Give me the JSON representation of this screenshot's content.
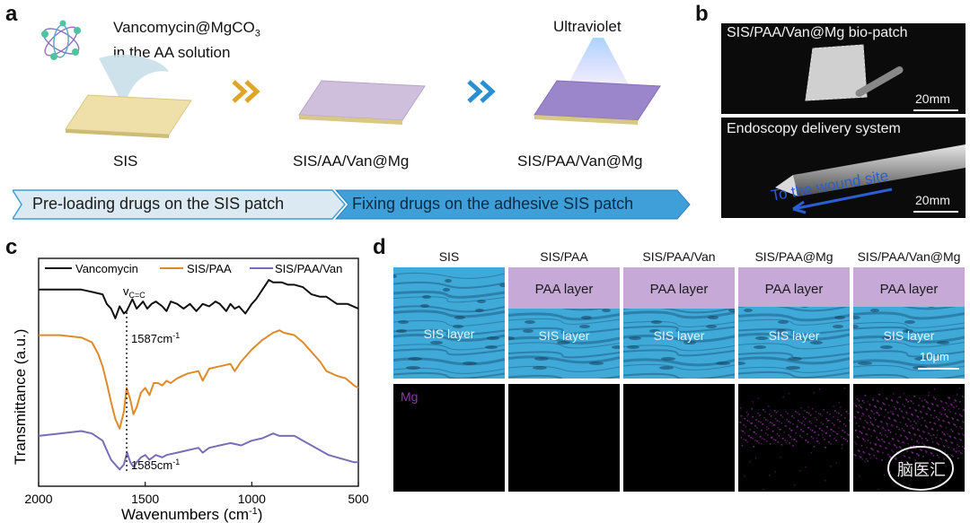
{
  "panel_a": {
    "label": "a",
    "drug_label_line1": "Vancomycin@MgCO",
    "drug_label_sub": "3",
    "drug_label_line2": "in the AA solution",
    "uv_label": "Ultraviolet",
    "patch_labels": [
      "SIS",
      "SIS/AA/Van@Mg",
      "SIS/PAA/Van@Mg"
    ],
    "step1": "Pre-loading drugs on the SIS patch",
    "step2": "Fixing drugs on the adhesive SIS patch",
    "colors": {
      "sis": "#eee0a8",
      "aa": "#cfbfdc",
      "paa": "#9b86cb",
      "arrow1": "#e0a528",
      "arrow2": "#2a8fd0",
      "step1": "#dbe9f2",
      "step2": "#3f9fd8"
    }
  },
  "panel_b": {
    "label": "b",
    "top_title": "SIS/PAA/Van@Mg bio-patch",
    "top_scale": "20mm",
    "bottom_title": "Endoscopy delivery system",
    "bottom_arrow": "To the wound site",
    "bottom_scale": "20mm"
  },
  "panel_c": {
    "label": "c",
    "chart_data": {
      "type": "line",
      "title": "",
      "xlabel": "Wavenumbers (cm-1)",
      "ylabel": "Transmittance (a.u.)",
      "xlim": [
        2000,
        500
      ],
      "x_ticks": [
        "2000",
        "1500",
        "1000",
        "500"
      ],
      "legend": [
        "Vancomycin",
        "SIS/PAA",
        "SIS/PAA/Van"
      ],
      "annotations": {
        "vcc": "v",
        "vcc_sub": "C=C",
        "peak1": "1587cm",
        "peak2": "1585cm",
        "exp": "-1"
      },
      "series": [
        {
          "name": "Vancomycin",
          "color": "#111111",
          "x": [
            2000,
            1900,
            1800,
            1750,
            1700,
            1680,
            1660,
            1640,
            1620,
            1600,
            1587,
            1560,
            1540,
            1510,
            1490,
            1470,
            1450,
            1420,
            1400,
            1380,
            1350,
            1320,
            1290,
            1260,
            1230,
            1200,
            1170,
            1150,
            1120,
            1100,
            1080,
            1060,
            1030,
            1000,
            980,
            950,
            920,
            900,
            860,
            830,
            800,
            760,
            720,
            680,
            650,
            600,
            550,
            500
          ],
          "y": [
            8.2,
            8.2,
            8.2,
            8.1,
            8.0,
            7.6,
            7.4,
            7.0,
            7.5,
            7.2,
            7.3,
            7.8,
            7.4,
            7.7,
            7.4,
            7.6,
            7.7,
            7.5,
            7.3,
            7.7,
            7.6,
            7.4,
            7.6,
            7.3,
            7.6,
            7.5,
            7.7,
            7.6,
            7.3,
            7.6,
            7.4,
            7.5,
            7.2,
            7.6,
            7.8,
            8.2,
            8.6,
            8.5,
            8.5,
            8.4,
            8.4,
            8.3,
            8.0,
            7.9,
            7.9,
            7.6,
            7.6,
            7.4
          ]
        },
        {
          "name": "SIS/PAA",
          "color": "#de8a2a",
          "x": [
            2000,
            1900,
            1800,
            1750,
            1720,
            1700,
            1680,
            1660,
            1640,
            1620,
            1600,
            1587,
            1570,
            1555,
            1540,
            1520,
            1500,
            1480,
            1460,
            1440,
            1420,
            1400,
            1380,
            1350,
            1300,
            1250,
            1230,
            1200,
            1150,
            1100,
            1080,
            1050,
            1000,
            950,
            900,
            870,
            850,
            800,
            760,
            720,
            680,
            650,
            600,
            560,
            520,
            500
          ],
          "y": [
            6.3,
            6.3,
            6.2,
            6.0,
            5.5,
            5.0,
            4.3,
            3.5,
            2.8,
            2.4,
            3.1,
            4.1,
            3.6,
            3.0,
            3.3,
            3.9,
            4.1,
            3.8,
            4.3,
            4.3,
            4.2,
            4.4,
            4.3,
            4.5,
            4.7,
            4.8,
            4.4,
            4.9,
            5.0,
            5.1,
            4.8,
            5.2,
            5.7,
            6.1,
            6.4,
            6.5,
            6.4,
            6.3,
            6.0,
            5.6,
            5.2,
            4.8,
            4.6,
            4.5,
            4.2,
            4.1
          ]
        },
        {
          "name": "SIS/PAA/Van",
          "color": "#7b6cb8",
          "x": [
            2000,
            1900,
            1800,
            1750,
            1700,
            1680,
            1660,
            1640,
            1620,
            1600,
            1585,
            1570,
            1555,
            1540,
            1520,
            1500,
            1480,
            1450,
            1420,
            1400,
            1350,
            1300,
            1250,
            1230,
            1200,
            1150,
            1100,
            1050,
            1000,
            950,
            900,
            870,
            850,
            800,
            760,
            720,
            680,
            640,
            600,
            560,
            520,
            500
          ],
          "y": [
            2.1,
            2.2,
            2.3,
            2.2,
            1.9,
            1.5,
            1.1,
            0.9,
            0.7,
            0.9,
            1.4,
            1.0,
            0.8,
            1.0,
            1.2,
            1.3,
            1.1,
            1.3,
            1.2,
            1.3,
            1.4,
            1.5,
            1.6,
            1.4,
            1.6,
            1.7,
            1.8,
            1.7,
            1.9,
            2.0,
            2.2,
            2.1,
            2.1,
            2.1,
            1.9,
            1.7,
            1.5,
            1.3,
            1.2,
            1.1,
            1.0,
            1.0
          ]
        }
      ]
    }
  },
  "panel_d": {
    "label": "d",
    "columns": [
      "SIS",
      "SIS/PAA",
      "SIS/PAA/Van",
      "SIS/PAA@Mg",
      "SIS/PAA/Van@Mg"
    ],
    "paa_label": "PAA layer",
    "sis_label": "SIS layer",
    "mg_label": "Mg",
    "scale": "10μm",
    "colors": {
      "sis_blue": "#3fa9d8",
      "paa_purple": "#c7a9d8",
      "mg_dot": "#8a2a9a"
    }
  },
  "watermark": {
    "text": "脑医汇"
  }
}
